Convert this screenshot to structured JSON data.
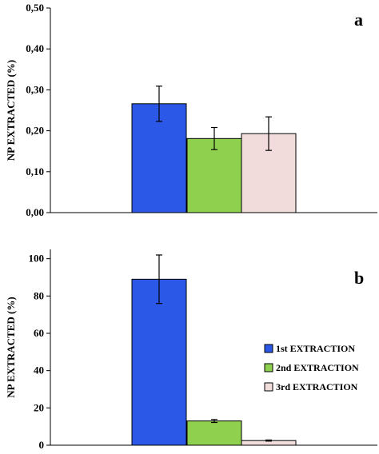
{
  "chart_data": [
    {
      "type": "bar",
      "panel_label": "a",
      "ylabel": "NP EXTRACTED (%)",
      "ylim": [
        0,
        0.5
      ],
      "yticks": [
        "0,00",
        "0,10",
        "0,20",
        "0,30",
        "0,40",
        "0,50"
      ],
      "series": [
        {
          "name": "1st EXTRACTION",
          "value": 0.266,
          "error": 0.043,
          "color": "#2b58e6"
        },
        {
          "name": "2nd EXTRACTION",
          "value": 0.181,
          "error": 0.027,
          "color": "#8fd14f"
        },
        {
          "name": "3rd EXTRACTION",
          "value": 0.193,
          "error": 0.041,
          "color": "#f2dcdb"
        }
      ],
      "legend": false
    },
    {
      "type": "bar",
      "panel_label": "b",
      "ylabel": "NP EXTRACTED (%)",
      "ylim": [
        0,
        105
      ],
      "yticks": [
        "0",
        "20",
        "40",
        "60",
        "80",
        "100"
      ],
      "series": [
        {
          "name": "1st EXTRACTION",
          "value": 89,
          "error": 13,
          "color": "#2b58e6"
        },
        {
          "name": "2nd EXTRACTION",
          "value": 13,
          "error": 0.8,
          "color": "#8fd14f"
        },
        {
          "name": "3rd EXTRACTION",
          "value": 2.5,
          "error": 0.3,
          "color": "#f2dcdb"
        }
      ],
      "legend": true,
      "legend_position": "right"
    }
  ]
}
